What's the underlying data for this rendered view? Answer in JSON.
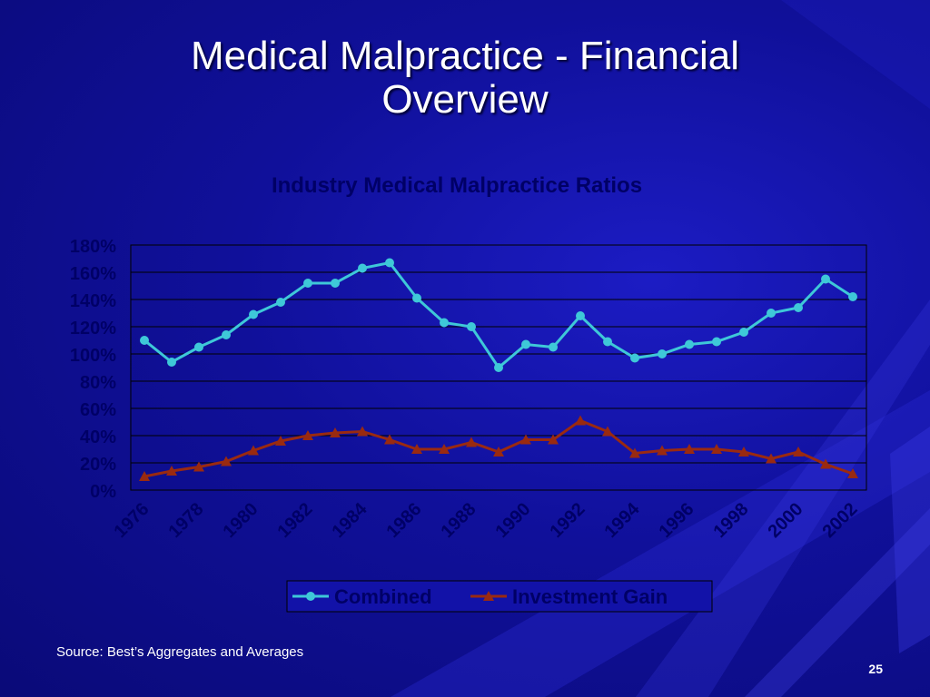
{
  "slide": {
    "title_line1": "Medical Malpractice - Financial",
    "title_line2": "Overview",
    "source": "Source: Best’s Aggregates and Averages",
    "page_number": "25"
  },
  "colors": {
    "background": "#10109a",
    "combined": "#3ec8d8",
    "investment_gain": "#9a2a10",
    "chart_text": "#000066",
    "gridline": "#000000"
  },
  "chart_data": {
    "type": "line",
    "title": "Industry Medical Malpractice Ratios",
    "x": [
      1976,
      1977,
      1978,
      1979,
      1980,
      1981,
      1982,
      1983,
      1984,
      1985,
      1986,
      1987,
      1988,
      1989,
      1990,
      1991,
      1992,
      1993,
      1994,
      1995,
      1996,
      1997,
      1998,
      1999,
      2000,
      2001,
      2002
    ],
    "x_tick_labels": [
      "1976",
      "1978",
      "1980",
      "1982",
      "1984",
      "1986",
      "1988",
      "1990",
      "1992",
      "1994",
      "1996",
      "1998",
      "2000",
      "2002"
    ],
    "ylim": [
      0,
      1.8
    ],
    "y_tick_labels": [
      "0%",
      "20%",
      "40%",
      "60%",
      "80%",
      "100%",
      "120%",
      "140%",
      "160%",
      "180%"
    ],
    "grid": true,
    "legend": "bottom",
    "series": [
      {
        "name": "Combined",
        "marker": "circle",
        "values": [
          1.1,
          0.94,
          1.05,
          1.14,
          1.29,
          1.38,
          1.52,
          1.52,
          1.63,
          1.67,
          1.41,
          1.23,
          1.2,
          0.9,
          1.07,
          1.05,
          1.28,
          1.09,
          0.97,
          1.0,
          1.07,
          1.09,
          1.16,
          1.3,
          1.34,
          1.55,
          1.42
        ]
      },
      {
        "name": "Investment Gain",
        "marker": "triangle",
        "values": [
          0.1,
          0.14,
          0.17,
          0.21,
          0.29,
          0.36,
          0.4,
          0.42,
          0.43,
          0.37,
          0.3,
          0.3,
          0.35,
          0.28,
          0.37,
          0.37,
          0.51,
          0.43,
          0.27,
          0.29,
          0.3,
          0.3,
          0.28,
          0.23,
          0.28,
          0.19,
          0.12
        ]
      }
    ]
  }
}
